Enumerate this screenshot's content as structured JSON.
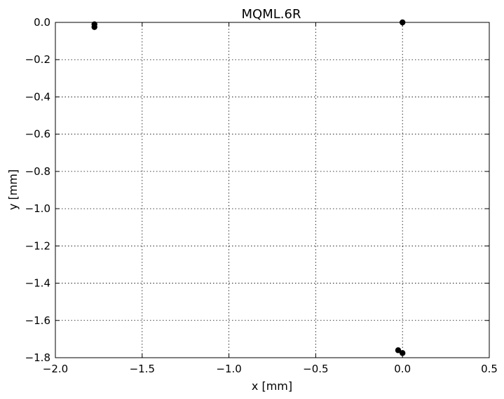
{
  "chart_data": {
    "type": "scatter",
    "title": "MQML.6R",
    "xlabel": "x [mm]",
    "ylabel": "y [mm]",
    "xlim": [
      -2.0,
      0.5
    ],
    "ylim": [
      -1.8,
      0.0
    ],
    "xticks": [
      -2.0,
      -1.5,
      -1.0,
      -0.5,
      0.0,
      0.5
    ],
    "xtick_labels": [
      "−2.0",
      "−1.5",
      "−1.0",
      "−0.5",
      "0.0",
      "0.5"
    ],
    "yticks": [
      0.0,
      -0.2,
      -0.4,
      -0.6,
      -0.8,
      -1.0,
      -1.2,
      -1.4,
      -1.6,
      -1.8
    ],
    "ytick_labels": [
      "0.0",
      "−0.2",
      "−0.4",
      "−0.6",
      "−0.8",
      "−1.0",
      "−1.2",
      "−1.4",
      "−1.6",
      "−1.8"
    ],
    "grid": true,
    "marker_color": "#000000",
    "points": [
      {
        "x": -1.775,
        "y": -0.01
      },
      {
        "x": -1.775,
        "y": -0.025
      },
      {
        "x": 0.0,
        "y": 0.0
      },
      {
        "x": -0.025,
        "y": -1.76
      },
      {
        "x": 0.0,
        "y": -1.775
      }
    ]
  }
}
